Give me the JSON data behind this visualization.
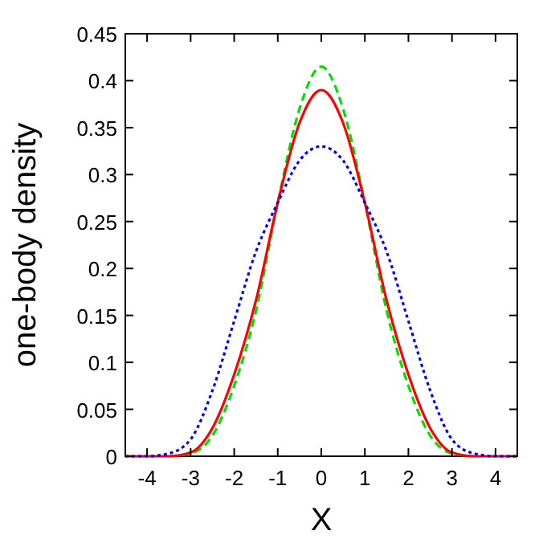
{
  "chart_data": {
    "type": "line",
    "xlabel": "X",
    "ylabel": "one-body density",
    "x": [
      -4.5,
      -4,
      -3.5,
      -3,
      -2.5,
      -2,
      -1.5,
      -1,
      -0.5,
      0,
      0.5,
      1,
      1.5,
      2,
      2.5,
      3,
      3.5,
      4,
      4.5
    ],
    "xlim": [
      -4.5,
      4.5
    ],
    "xticks": [
      -4,
      -3,
      -2,
      -1,
      0,
      1,
      2,
      3,
      4
    ],
    "ylim": [
      0,
      0.45
    ],
    "yticks": [
      0,
      0.05,
      0.1,
      0.15,
      0.2,
      0.25,
      0.3,
      0.35,
      0.4,
      0.45
    ],
    "grid": false,
    "marker": "none",
    "series": [
      {
        "color": "#00e000",
        "line_style": "dashed",
        "values": [
          null,
          null,
          0,
          0.003,
          0.022,
          0.075,
          0.155,
          0.27,
          0.37,
          0.415,
          0.37,
          0.27,
          0.155,
          0.075,
          0.022,
          0.003,
          0,
          null,
          null
        ]
      },
      {
        "color": "#ff0000",
        "line_style": "solid",
        "values": [
          0,
          0,
          0,
          0.004,
          0.03,
          0.087,
          0.166,
          0.27,
          0.355,
          0.39,
          0.355,
          0.27,
          0.166,
          0.087,
          0.03,
          0.004,
          0,
          0,
          0
        ]
      },
      {
        "color": "#0000ff",
        "line_style": "dotted",
        "values": [
          0,
          0,
          0.003,
          0.018,
          0.07,
          0.144,
          0.218,
          0.27,
          0.315,
          0.33,
          0.315,
          0.27,
          0.218,
          0.144,
          0.07,
          0.018,
          0.003,
          0,
          0
        ]
      }
    ]
  }
}
